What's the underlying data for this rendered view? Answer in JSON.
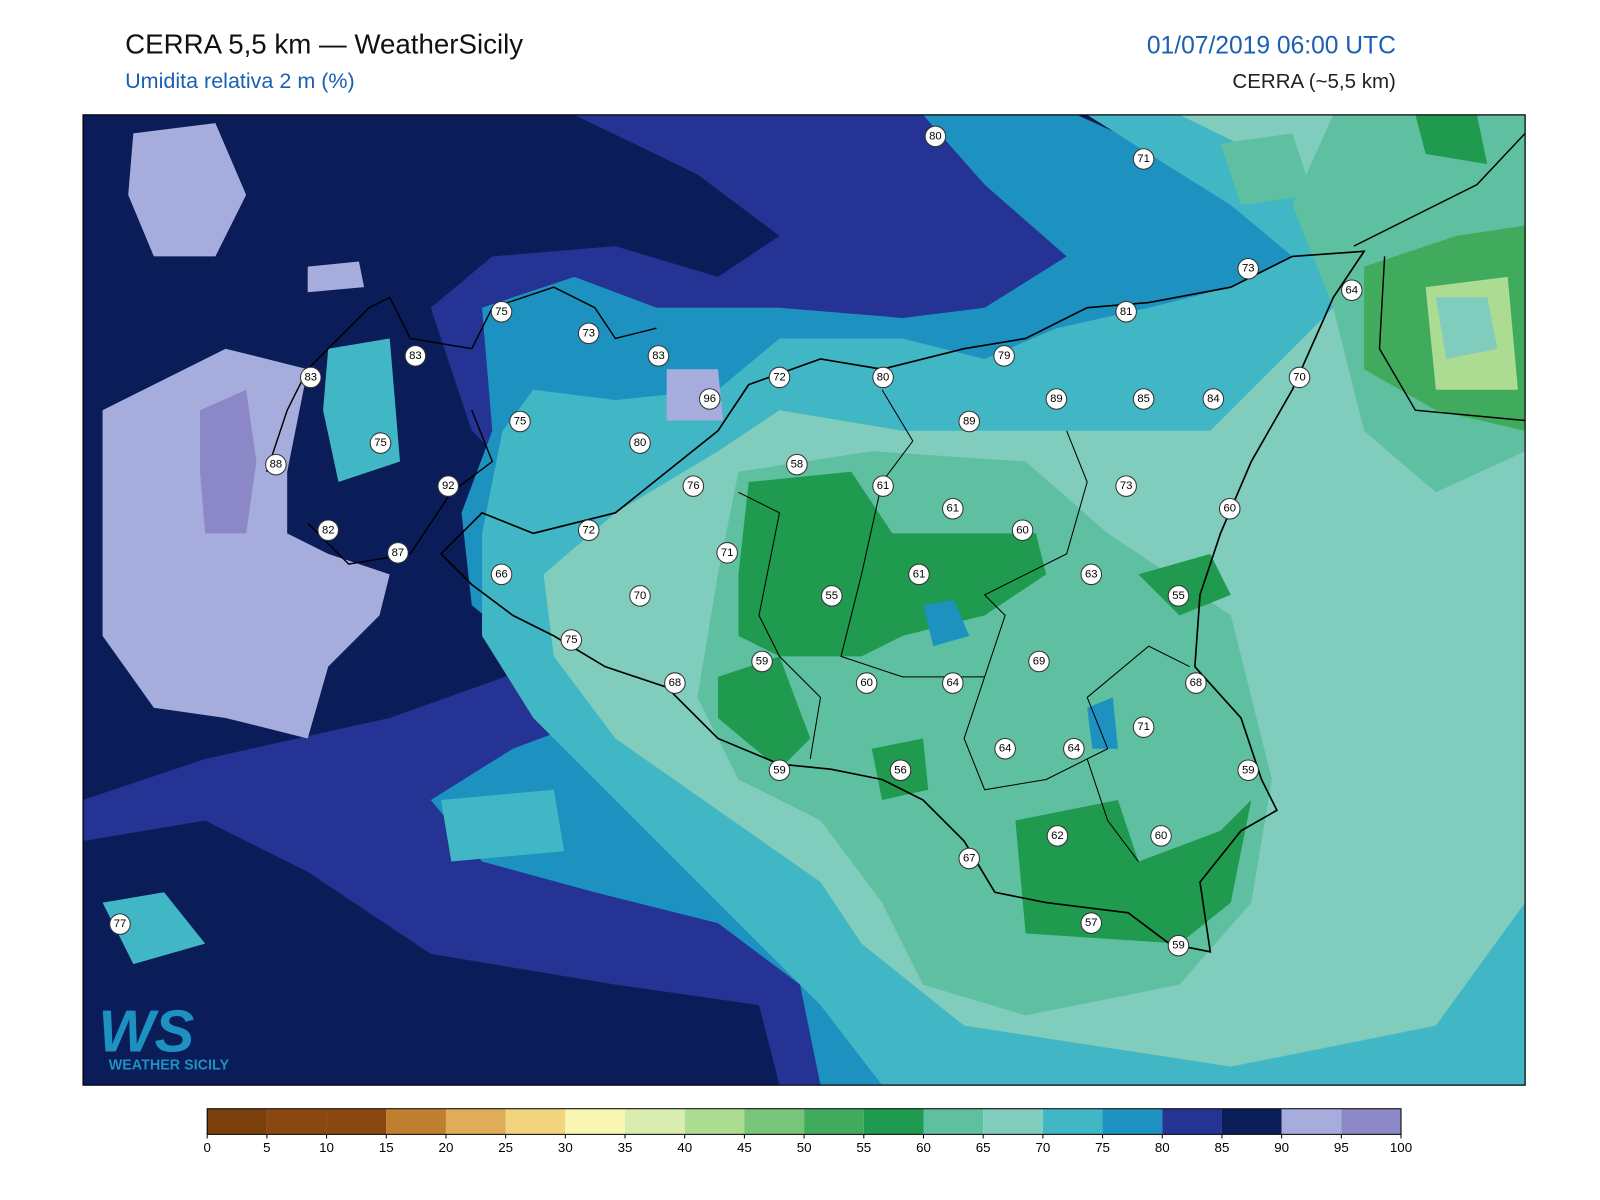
{
  "header": {
    "title": "CERRA 5,5 km — WeatherSicily",
    "subtitle": "Umidita relativa 2 m (%)",
    "datetime": "01/07/2019 06:00 UTC",
    "model": "CERRA (~5,5 km)"
  },
  "logo": {
    "mark": "WS",
    "text": "WEATHER SICILY"
  },
  "colorbar": {
    "ticks": [
      0,
      5,
      10,
      15,
      20,
      25,
      30,
      35,
      40,
      45,
      50,
      55,
      60,
      65,
      70,
      75,
      80,
      85,
      90,
      95,
      100
    ],
    "colors": [
      "#7a3f0a",
      "#8a4810",
      "#8a4810",
      "#c07f2e",
      "#dfac57",
      "#f1d47d",
      "#f8f6b1",
      "#d9eeae",
      "#abdc91",
      "#78c57a",
      "#41ab5d",
      "#1f9a4f",
      "#5ebfa1",
      "#80ccbd",
      "#41b6c4",
      "#1d91c0",
      "#253494",
      "#0a1d58",
      "#a6acdc",
      "#8c88c8"
    ]
  },
  "stations": [
    {
      "value": 80
    },
    {
      "value": 71
    },
    {
      "value": 75
    },
    {
      "value": 73
    },
    {
      "value": 83
    },
    {
      "value": 83
    },
    {
      "value": 83
    },
    {
      "value": 73
    },
    {
      "value": 64
    },
    {
      "value": 81
    },
    {
      "value": 79
    },
    {
      "value": 72
    },
    {
      "value": 80
    },
    {
      "value": 96
    },
    {
      "value": 89
    },
    {
      "value": 85
    },
    {
      "value": 84
    },
    {
      "value": 70
    },
    {
      "value": 75
    },
    {
      "value": 89
    },
    {
      "value": 75
    },
    {
      "value": 80
    },
    {
      "value": 88
    },
    {
      "value": 92
    },
    {
      "value": 58
    },
    {
      "value": 61
    },
    {
      "value": 76
    },
    {
      "value": 61
    },
    {
      "value": 73
    },
    {
      "value": 60
    },
    {
      "value": 82
    },
    {
      "value": 72
    },
    {
      "value": 60
    },
    {
      "value": 87
    },
    {
      "value": 71
    },
    {
      "value": 66
    },
    {
      "value": 61
    },
    {
      "value": 63
    },
    {
      "value": 70
    },
    {
      "value": 55
    },
    {
      "value": 55
    },
    {
      "value": 75
    },
    {
      "value": 59
    },
    {
      "value": 69
    },
    {
      "value": 68
    },
    {
      "value": 60
    },
    {
      "value": 64
    },
    {
      "value": 68
    },
    {
      "value": 71
    },
    {
      "value": 64
    },
    {
      "value": 64
    },
    {
      "value": 59
    },
    {
      "value": 56
    },
    {
      "value": 59
    },
    {
      "value": 62
    },
    {
      "value": 60
    },
    {
      "value": 67
    },
    {
      "value": 57
    },
    {
      "value": 59
    },
    {
      "value": 77
    }
  ]
}
